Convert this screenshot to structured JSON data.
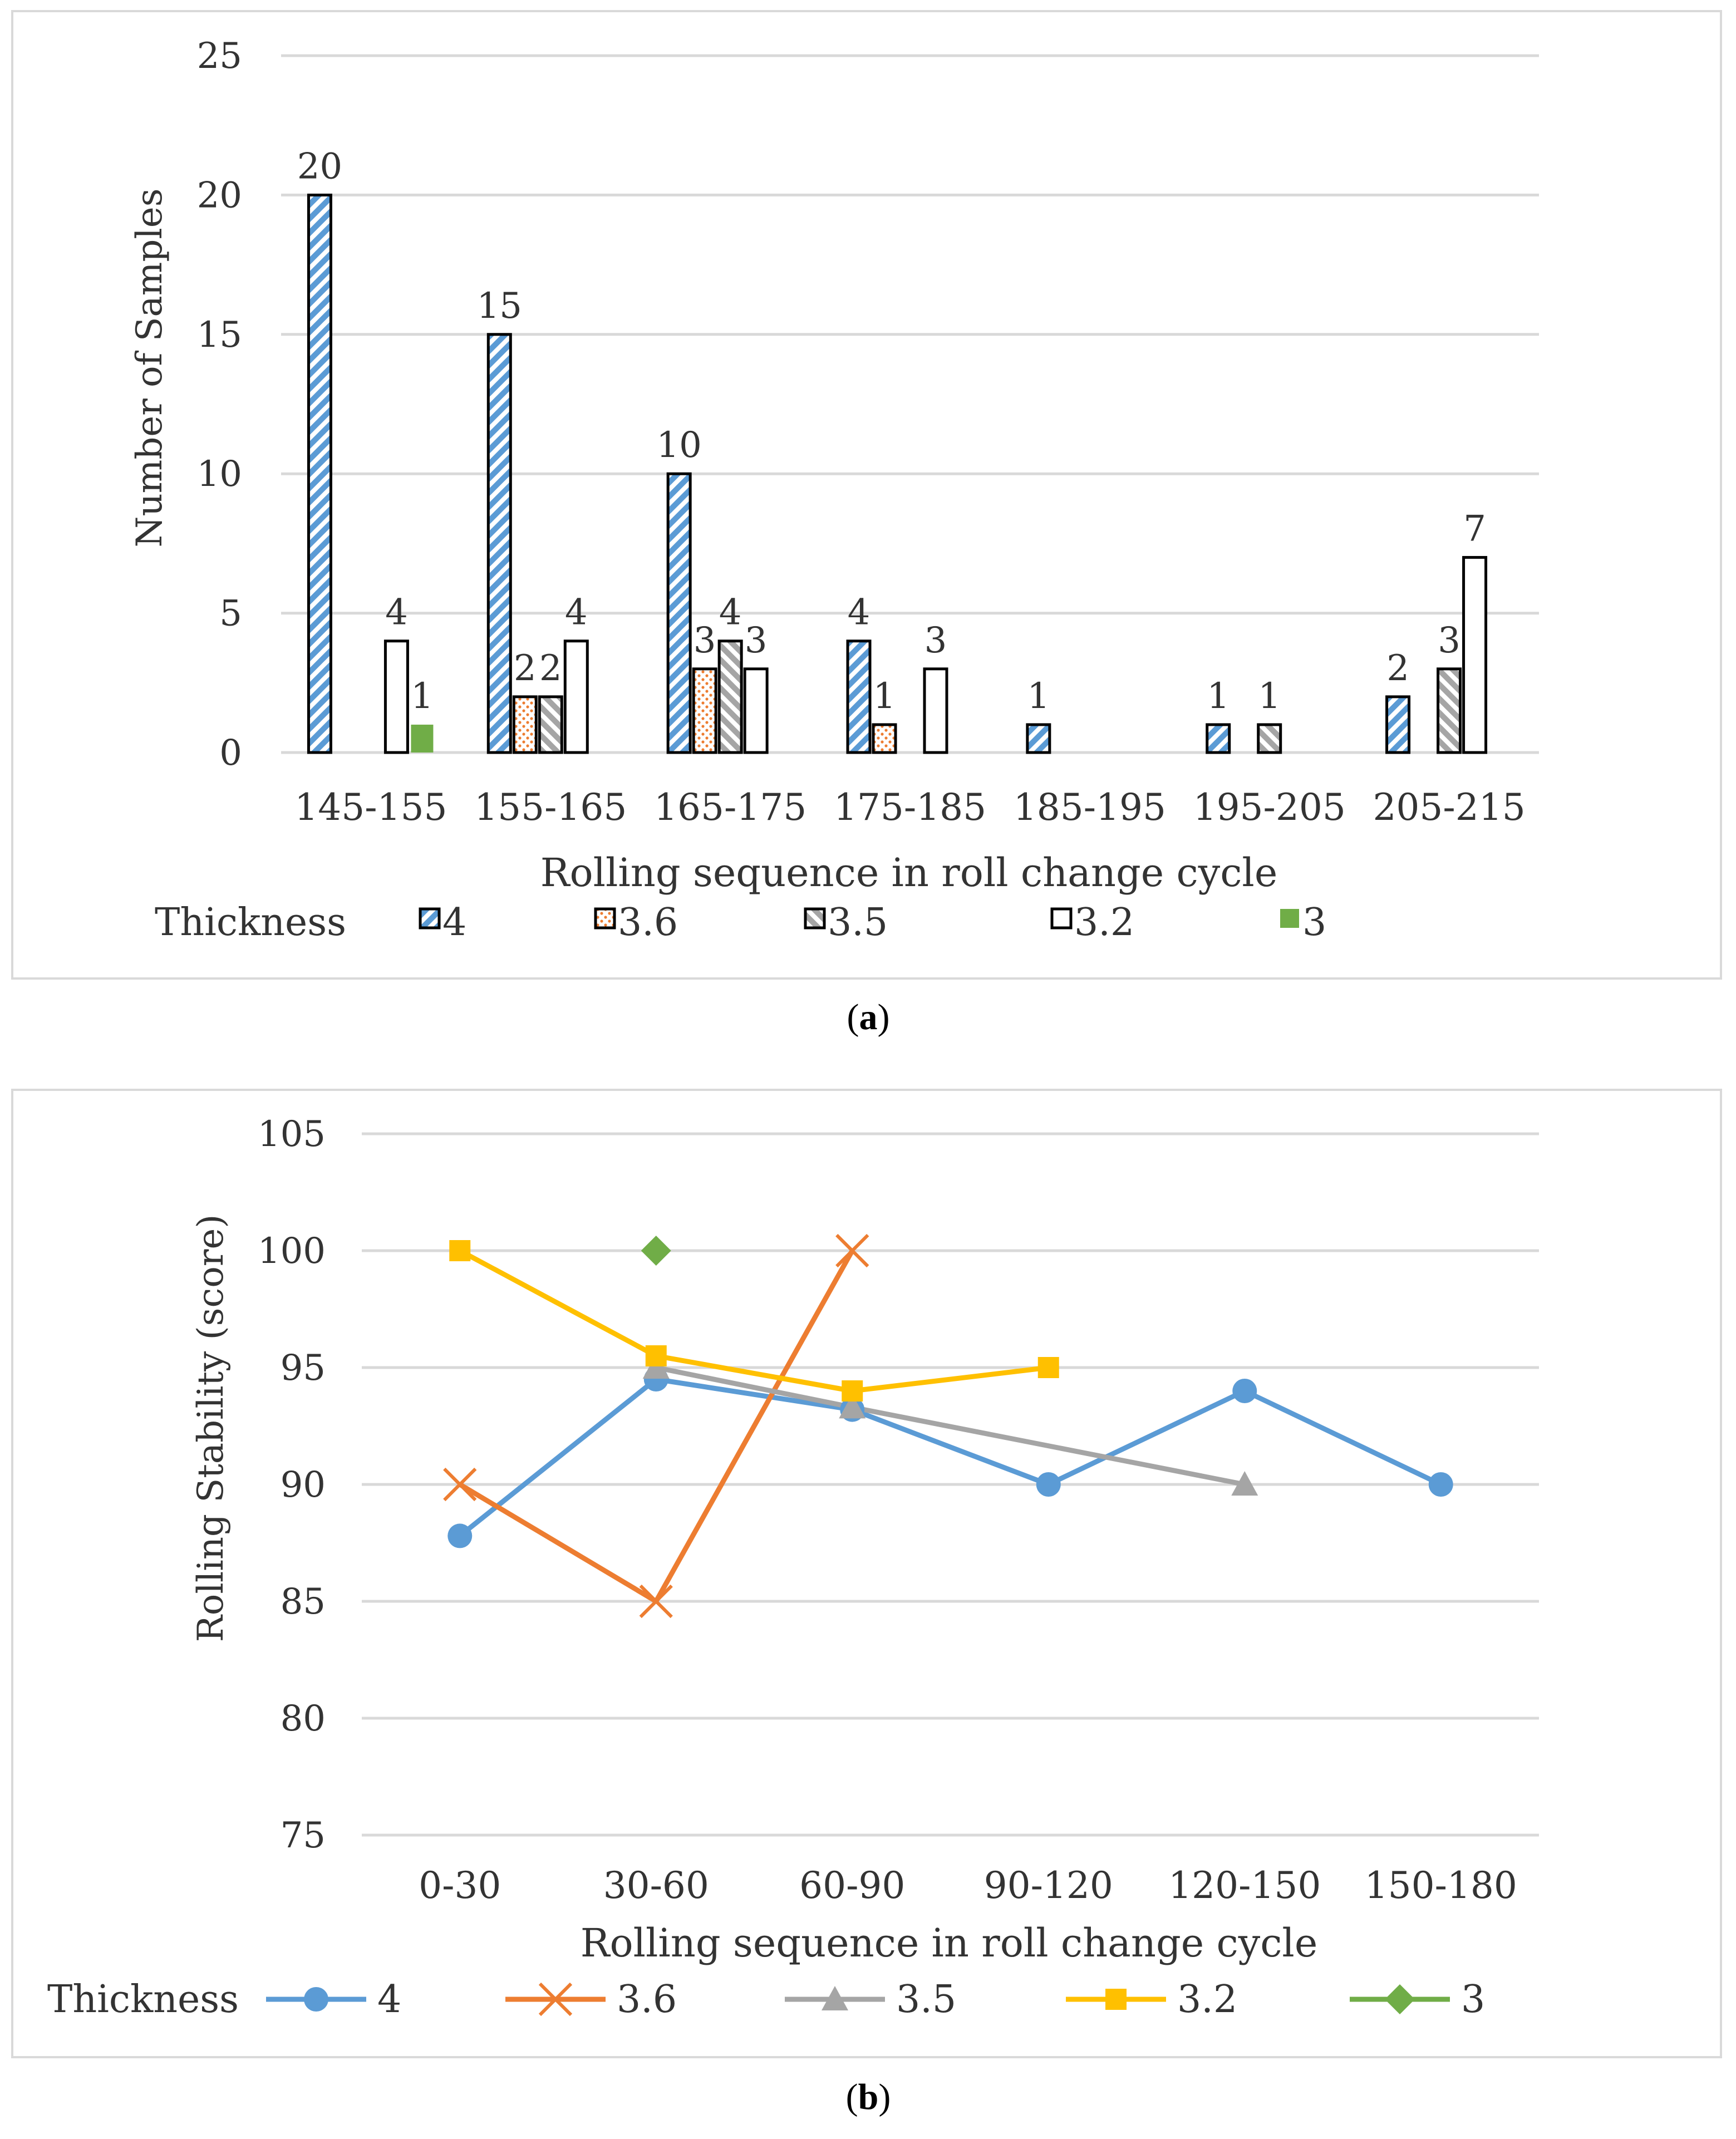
{
  "panels": [
    {
      "caption_open": "(",
      "caption_letter": "a",
      "caption_close": ")"
    },
    {
      "caption_open": "(",
      "caption_letter": "b",
      "caption_close": ")"
    }
  ],
  "chart_data": [
    {
      "type": "bar",
      "title": "",
      "xlabel": "Rolling sequence in roll change cycle",
      "ylabel": "Number of Samples",
      "ylim": [
        0,
        25
      ],
      "yticks": [
        0,
        5,
        10,
        15,
        20,
        25
      ],
      "grid": true,
      "legend_title": "Thickness",
      "legend_placement": "bottom",
      "categories": [
        "145-155",
        "155-165",
        "165-175",
        "175-185",
        "185-195",
        "195-205",
        "205-215"
      ],
      "series": [
        {
          "name": "4",
          "pattern": "diag-blue",
          "color": "#5B9BD5",
          "values": [
            20,
            15,
            10,
            4,
            1,
            1,
            2
          ]
        },
        {
          "name": "3.6",
          "pattern": "dots-orange",
          "color": "#ED7D31",
          "values": [
            null,
            2,
            3,
            1,
            null,
            null,
            null
          ]
        },
        {
          "name": "3.5",
          "pattern": "diag-gray",
          "color": "#A5A5A5",
          "values": [
            null,
            2,
            4,
            null,
            null,
            1,
            3
          ]
        },
        {
          "name": "3.2",
          "pattern": "white",
          "color": "#FFFFFF",
          "values": [
            4,
            4,
            3,
            3,
            null,
            null,
            7
          ]
        },
        {
          "name": "3",
          "pattern": "solid-green",
          "color": "#70AD47",
          "values": [
            1,
            null,
            null,
            null,
            null,
            null,
            null
          ]
        }
      ]
    },
    {
      "type": "line",
      "title": "",
      "xlabel": "Rolling sequence in roll change cycle",
      "ylabel": "Rolling Stability (score)",
      "ylim": [
        75,
        105
      ],
      "yticks": [
        75,
        80,
        85,
        90,
        95,
        100,
        105
      ],
      "grid": true,
      "legend_title": "Thickness",
      "legend_placement": "bottom",
      "categories": [
        "0-30",
        "30-60",
        "60-90",
        "90-120",
        "120-150",
        "150-180"
      ],
      "series": [
        {
          "name": "4",
          "marker": "circle",
          "color": "#5B9BD5",
          "values": [
            87.8,
            94.5,
            93.2,
            90,
            94,
            90
          ]
        },
        {
          "name": "3.6",
          "marker": "x",
          "color": "#ED7D31",
          "values": [
            90,
            85,
            100,
            null,
            null,
            null
          ]
        },
        {
          "name": "3.5",
          "marker": "triangle",
          "color": "#A5A5A5",
          "values": [
            null,
            95,
            93.3,
            null,
            90,
            null
          ]
        },
        {
          "name": "3.2",
          "marker": "square",
          "color": "#FFC000",
          "values": [
            100,
            95.5,
            94,
            95,
            null,
            null
          ]
        },
        {
          "name": "3",
          "marker": "diamond",
          "color": "#70AD47",
          "values": [
            null,
            100,
            null,
            null,
            null,
            null
          ]
        }
      ]
    }
  ]
}
